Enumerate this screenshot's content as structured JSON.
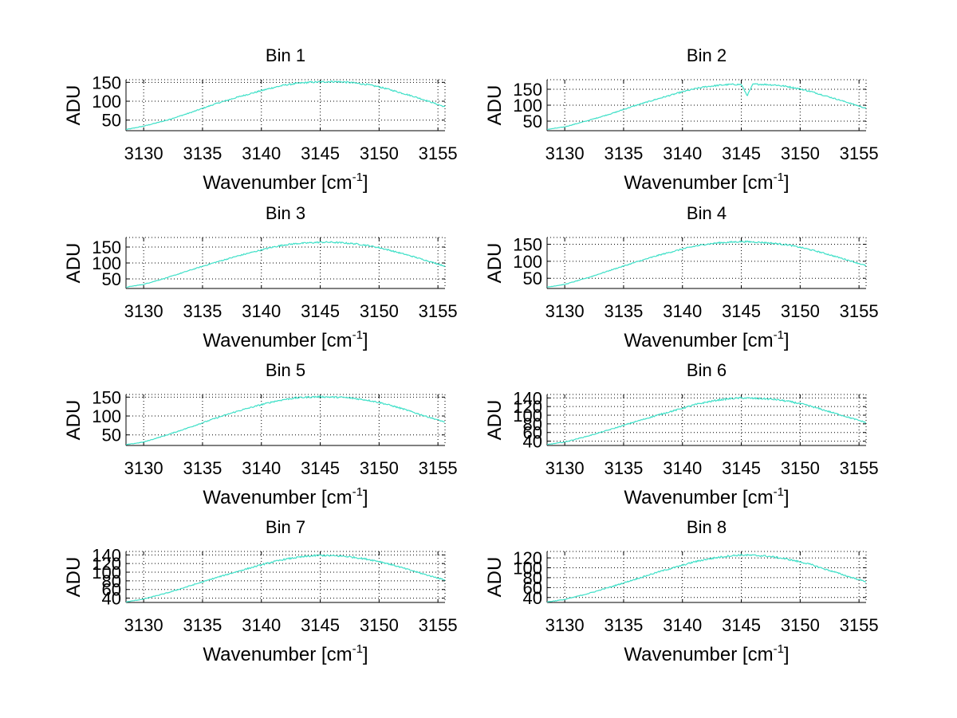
{
  "chart_data": [
    {
      "type": "line",
      "title": "Bin 1",
      "xlabel": "Wavenumber [cm",
      "xlabel_sup": "-1",
      "xlabel_suffix": "]",
      "ylabel": "ADU",
      "xlim": [
        3128.5,
        3155.6
      ],
      "ylim": [
        22,
        157
      ],
      "xticks": [
        3130,
        3135,
        3140,
        3145,
        3150,
        3155
      ],
      "yticks": [
        50,
        100,
        150
      ],
      "grid": true,
      "color": "#40e0c8",
      "series": [
        {
          "x": [
            3128.5,
            3130,
            3132,
            3134,
            3136,
            3138,
            3140,
            3141,
            3142,
            3143,
            3144,
            3145,
            3146,
            3147,
            3148,
            3149,
            3150,
            3151,
            3152,
            3153,
            3154,
            3155.6
          ],
          "y": [
            25,
            34,
            50,
            70,
            92,
            111,
            128,
            136,
            143,
            147,
            150,
            151,
            152,
            151,
            148,
            144,
            138,
            130,
            121,
            112,
            102,
            85
          ]
        }
      ]
    },
    {
      "type": "line",
      "title": "Bin 2",
      "xlabel": "Wavenumber [cm",
      "xlabel_sup": "-1",
      "xlabel_suffix": "]",
      "ylabel": "ADU",
      "xlim": [
        3128.5,
        3155.6
      ],
      "ylim": [
        20,
        180
      ],
      "xticks": [
        3130,
        3135,
        3140,
        3145,
        3150,
        3155
      ],
      "yticks": [
        50,
        100,
        150
      ],
      "grid": true,
      "color": "#40e0c8",
      "series": [
        {
          "x": [
            3128.5,
            3130,
            3132,
            3134,
            3136,
            3138,
            3140,
            3141,
            3142,
            3143,
            3144,
            3145,
            3145.5,
            3146,
            3147,
            3148,
            3149,
            3150,
            3151,
            3152,
            3153,
            3154,
            3155.6
          ],
          "y": [
            24,
            32,
            52,
            74,
            99,
            121,
            142,
            151,
            158,
            162,
            165,
            165,
            130,
            166,
            165,
            163,
            158,
            151,
            142,
            131,
            120,
            109,
            90
          ]
        }
      ]
    },
    {
      "type": "line",
      "title": "Bin 3",
      "xlabel": "Wavenumber [cm",
      "xlabel_sup": "-1",
      "xlabel_suffix": "]",
      "ylabel": "ADU",
      "xlim": [
        3128.5,
        3155.6
      ],
      "ylim": [
        20,
        180
      ],
      "xticks": [
        3130,
        3135,
        3140,
        3145,
        3150,
        3155
      ],
      "yticks": [
        50,
        100,
        150
      ],
      "grid": true,
      "color": "#40e0c8",
      "series": [
        {
          "x": [
            3128.5,
            3130,
            3132,
            3134,
            3136,
            3138,
            3140,
            3141,
            3142,
            3143,
            3144,
            3145,
            3146,
            3147,
            3148,
            3149,
            3150,
            3151,
            3152,
            3153,
            3154,
            3155.6
          ],
          "y": [
            24,
            33,
            54,
            78,
            101,
            122,
            141,
            150,
            157,
            161,
            163,
            165,
            165,
            163,
            160,
            155,
            148,
            139,
            129,
            119,
            108,
            90
          ]
        }
      ]
    },
    {
      "type": "line",
      "title": "Bin 4",
      "xlabel": "Wavenumber [cm",
      "xlabel_sup": "-1",
      "xlabel_suffix": "]",
      "ylabel": "ADU",
      "xlim": [
        3128.5,
        3155.6
      ],
      "ylim": [
        20,
        170
      ],
      "xticks": [
        3130,
        3135,
        3140,
        3145,
        3150,
        3155
      ],
      "yticks": [
        50,
        100,
        150
      ],
      "grid": true,
      "color": "#40e0c8",
      "series": [
        {
          "x": [
            3128.5,
            3130,
            3132,
            3134,
            3136,
            3138,
            3140,
            3141,
            3142,
            3143,
            3144,
            3145,
            3146,
            3147,
            3148,
            3149,
            3150,
            3151,
            3152,
            3153,
            3154,
            3155.6
          ],
          "y": [
            24,
            32,
            52,
            75,
            97,
            118,
            136,
            144,
            150,
            154,
            156,
            158,
            157,
            155,
            152,
            148,
            141,
            133,
            124,
            114,
            104,
            87
          ]
        }
      ]
    },
    {
      "type": "line",
      "title": "Bin 5",
      "xlabel": "Wavenumber [cm",
      "xlabel_sup": "-1",
      "xlabel_suffix": "]",
      "ylabel": "ADU",
      "xlim": [
        3128.5,
        3155.6
      ],
      "ylim": [
        22,
        157
      ],
      "xticks": [
        3130,
        3135,
        3140,
        3145,
        3150,
        3155
      ],
      "yticks": [
        50,
        100,
        150
      ],
      "grid": true,
      "color": "#40e0c8",
      "series": [
        {
          "x": [
            3128.5,
            3130,
            3132,
            3134,
            3136,
            3138,
            3140,
            3141,
            3142,
            3143,
            3144,
            3145,
            3146,
            3147,
            3148,
            3149,
            3150,
            3151,
            3152,
            3153,
            3154,
            3155.6
          ],
          "y": [
            24,
            31,
            50,
            71,
            93,
            113,
            130,
            138,
            144,
            148,
            150,
            151,
            150,
            149,
            146,
            142,
            136,
            128,
            119,
            109,
            99,
            84
          ]
        }
      ]
    },
    {
      "type": "line",
      "title": "Bin 6",
      "xlabel": "Wavenumber [cm",
      "xlabel_sup": "-1",
      "xlabel_suffix": "]",
      "ylabel": "ADU",
      "xlim": [
        3128.5,
        3155.6
      ],
      "ylim": [
        30,
        148
      ],
      "xticks": [
        3130,
        3135,
        3140,
        3145,
        3150,
        3155
      ],
      "yticks": [
        40,
        60,
        80,
        100,
        120,
        140
      ],
      "grid": true,
      "color": "#40e0c8",
      "series": [
        {
          "x": [
            3128.5,
            3130,
            3132,
            3134,
            3136,
            3138,
            3140,
            3141,
            3142,
            3143,
            3144,
            3145,
            3146,
            3147,
            3148,
            3149,
            3150,
            3151,
            3152,
            3153,
            3154,
            3155.6
          ],
          "y": [
            32,
            38,
            52,
            68,
            85,
            101,
            116,
            124,
            130,
            135,
            138,
            140,
            139,
            138,
            136,
            132,
            127,
            120,
            112,
            104,
            96,
            83
          ]
        }
      ]
    },
    {
      "type": "line",
      "title": "Bin 7",
      "xlabel": "Wavenumber [cm",
      "xlabel_sup": "-1",
      "xlabel_suffix": "]",
      "ylabel": "ADU",
      "xlim": [
        3128.5,
        3155.6
      ],
      "ylim": [
        30,
        148
      ],
      "xticks": [
        3130,
        3135,
        3140,
        3145,
        3150,
        3155
      ],
      "yticks": [
        40,
        60,
        80,
        100,
        120,
        140
      ],
      "grid": true,
      "color": "#40e0c8",
      "series": [
        {
          "x": [
            3128.5,
            3130,
            3132,
            3134,
            3136,
            3138,
            3140,
            3141,
            3142,
            3143,
            3144,
            3145,
            3146,
            3147,
            3148,
            3149,
            3150,
            3151,
            3152,
            3153,
            3154,
            3155.6
          ],
          "y": [
            31,
            38,
            52,
            69,
            86,
            102,
            117,
            124,
            130,
            134,
            137,
            139,
            138,
            137,
            134,
            130,
            125,
            118,
            110,
            102,
            94,
            82
          ]
        }
      ]
    },
    {
      "type": "line",
      "title": "Bin 8",
      "xlabel": "Wavenumber [cm",
      "xlabel_sup": "-1",
      "xlabel_suffix": "]",
      "ylabel": "ADU",
      "xlim": [
        3128.5,
        3155.6
      ],
      "ylim": [
        30,
        133
      ],
      "xticks": [
        3130,
        3135,
        3140,
        3145,
        3150,
        3155
      ],
      "yticks": [
        40,
        60,
        80,
        100,
        120
      ],
      "grid": true,
      "color": "#40e0c8",
      "series": [
        {
          "x": [
            3128.5,
            3130,
            3132,
            3134,
            3136,
            3138,
            3140,
            3141,
            3142,
            3143,
            3144,
            3145,
            3146,
            3147,
            3148,
            3149,
            3150,
            3151,
            3152,
            3153,
            3154,
            3155.6
          ],
          "y": [
            31,
            36,
            48,
            62,
            77,
            92,
            105,
            112,
            117,
            121,
            124,
            126,
            125,
            124,
            121,
            117,
            112,
            106,
            98,
            91,
            83,
            72
          ]
        }
      ]
    }
  ]
}
